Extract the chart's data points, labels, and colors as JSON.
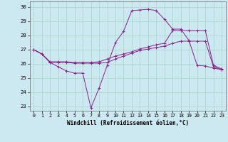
{
  "xlabel": "Windchill (Refroidissement éolien,°C)",
  "bg_color": "#cce8f0",
  "grid_color": "#aad4cc",
  "line_color": "#882288",
  "ylim": [
    22.7,
    30.4
  ],
  "xlim": [
    -0.5,
    23.5
  ],
  "yticks": [
    23,
    24,
    25,
    26,
    27,
    28,
    29,
    30
  ],
  "xticks": [
    0,
    1,
    2,
    3,
    4,
    5,
    6,
    7,
    8,
    9,
    10,
    11,
    12,
    13,
    14,
    15,
    16,
    17,
    18,
    19,
    20,
    21,
    22,
    23
  ],
  "line1_x": [
    0,
    1,
    2,
    3,
    4,
    5,
    6,
    7,
    8,
    9,
    10,
    11,
    12,
    13,
    14,
    15,
    16,
    17,
    18,
    19,
    20,
    21,
    22,
    23
  ],
  "line1_y": [
    27.0,
    26.7,
    26.1,
    25.8,
    25.5,
    25.35,
    25.35,
    22.9,
    24.3,
    25.9,
    27.5,
    28.3,
    29.75,
    29.8,
    29.85,
    29.75,
    29.15,
    28.45,
    28.45,
    27.65,
    25.9,
    25.85,
    25.7,
    25.6
  ],
  "line2_x": [
    0,
    1,
    2,
    3,
    4,
    5,
    6,
    7,
    8,
    9,
    10,
    11,
    12,
    13,
    14,
    15,
    16,
    17,
    18,
    19,
    20,
    21,
    22,
    23
  ],
  "line2_y": [
    27.0,
    26.7,
    26.1,
    26.1,
    26.1,
    26.05,
    26.05,
    26.05,
    26.05,
    26.1,
    26.35,
    26.55,
    26.75,
    26.95,
    27.05,
    27.15,
    27.25,
    27.45,
    27.6,
    27.6,
    27.6,
    27.6,
    25.8,
    25.6
  ],
  "line3_x": [
    0,
    1,
    2,
    3,
    4,
    5,
    6,
    7,
    8,
    9,
    10,
    11,
    12,
    13,
    14,
    15,
    16,
    17,
    18,
    19,
    20,
    21,
    22,
    23
  ],
  "line3_y": [
    27.0,
    26.7,
    26.15,
    26.15,
    26.15,
    26.1,
    26.1,
    26.1,
    26.15,
    26.35,
    26.55,
    26.7,
    26.85,
    27.05,
    27.2,
    27.35,
    27.45,
    28.35,
    28.35,
    28.35,
    28.35,
    28.35,
    25.9,
    25.65
  ]
}
